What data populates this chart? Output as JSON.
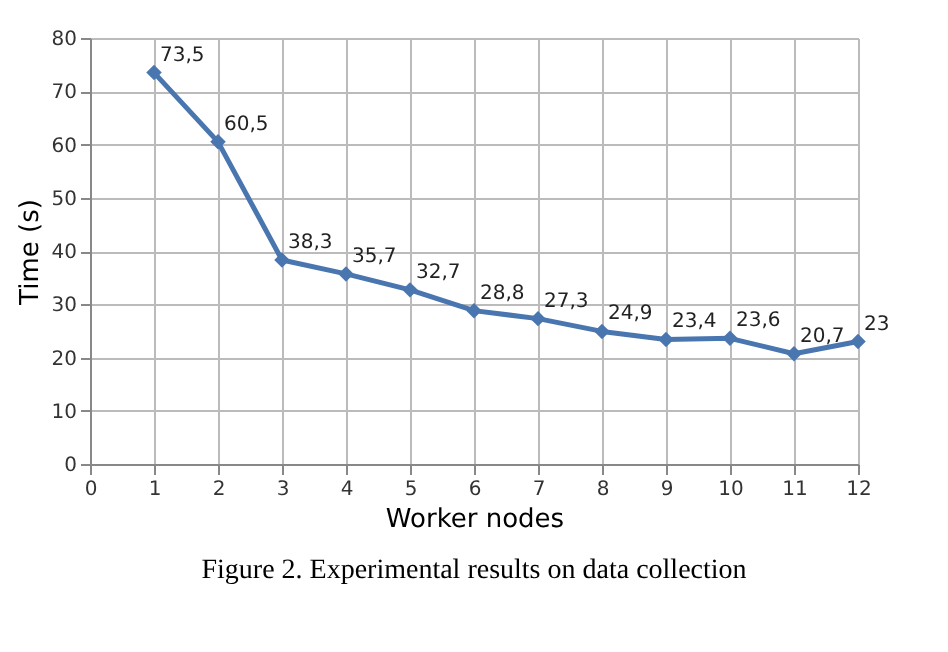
{
  "chart_data": {
    "type": "line",
    "xlabel": "Worker nodes",
    "ylabel": "Time (s)",
    "x": [
      1,
      2,
      3,
      4,
      5,
      6,
      7,
      8,
      9,
      10,
      11,
      12
    ],
    "series": [
      {
        "color": "#4a76b0",
        "values": [
          73.5,
          60.5,
          38.3,
          35.7,
          32.7,
          28.8,
          27.3,
          24.9,
          23.4,
          23.6,
          20.7,
          23
        ],
        "value_labels": [
          "73,5",
          "60,5",
          "38,3",
          "35,7",
          "32,7",
          "28,8",
          "27,3",
          "24,9",
          "23,4",
          "23,6",
          "20,7",
          "23"
        ]
      }
    ],
    "xlim": [
      0,
      12
    ],
    "xticks": [
      0,
      1,
      2,
      3,
      4,
      5,
      6,
      7,
      8,
      9,
      10,
      11,
      12
    ],
    "ylim": [
      0,
      80
    ],
    "yticks": [
      0,
      10,
      20,
      30,
      40,
      50,
      60,
      70,
      80
    ],
    "grid": true,
    "marker": "diamond",
    "line_style": "solid",
    "annotations": [
      "Figure 2. Experimental results on data collection"
    ]
  }
}
